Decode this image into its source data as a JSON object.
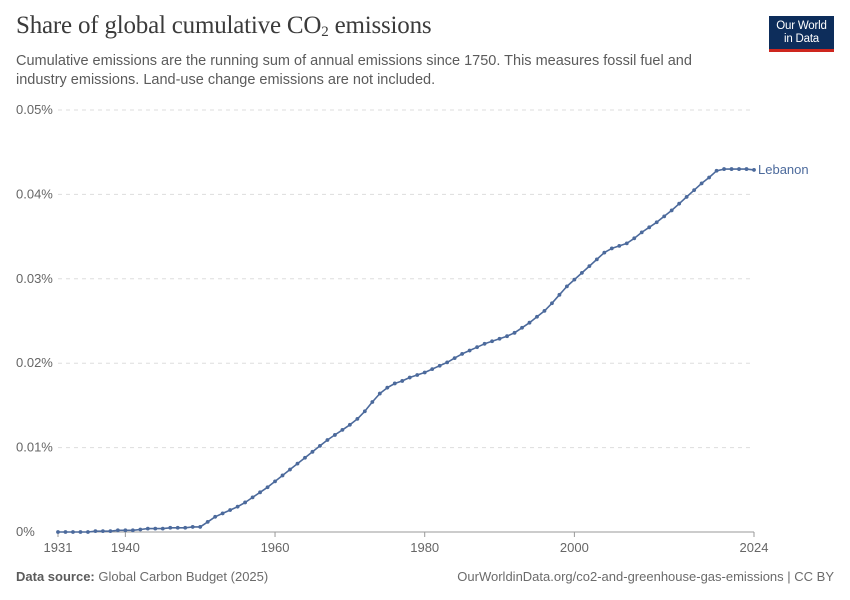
{
  "header": {
    "title_main": "Share of global cumulative CO",
    "title_sub": "2",
    "title_tail": " emissions",
    "subtitle": "Cumulative emissions are the running sum of annual emissions since 1750. This measures fossil fuel and industry emissions. Land-use change emissions are not included."
  },
  "logo": {
    "line1": "Our World",
    "line2": "in Data",
    "bg_color": "#0d2d5b",
    "accent_color": "#ce261e"
  },
  "footer": {
    "source_label": "Data source:",
    "source_value": "Global Carbon Budget (2025)",
    "url": "OurWorldinData.org/co2-and-greenhouse-gas-emissions | CC BY"
  },
  "chart_data": {
    "type": "line",
    "title": "Share of global cumulative CO₂ emissions",
    "xlabel": "",
    "ylabel": "",
    "xlim": [
      1931,
      2024
    ],
    "ylim": [
      0,
      0.05
    ],
    "y_ticks": [
      0,
      0.01,
      0.02,
      0.03,
      0.04,
      0.05
    ],
    "y_tick_labels": [
      "0%",
      "0.01%",
      "0.02%",
      "0.03%",
      "0.04%",
      "0.05%"
    ],
    "x_ticks": [
      1931,
      1940,
      1960,
      1980,
      2000,
      2024
    ],
    "x_tick_labels": [
      "1931",
      "1940",
      "1960",
      "1980",
      "2000",
      "2024"
    ],
    "grid": "horizontal-dashed",
    "legend": "inline-right",
    "line_color": "#4c6a9c",
    "series": [
      {
        "name": "Lebanon",
        "unit": "%",
        "x": [
          1931,
          1932,
          1933,
          1934,
          1935,
          1936,
          1937,
          1938,
          1939,
          1940,
          1941,
          1942,
          1943,
          1944,
          1945,
          1946,
          1947,
          1948,
          1949,
          1950,
          1951,
          1952,
          1953,
          1954,
          1955,
          1956,
          1957,
          1958,
          1959,
          1960,
          1961,
          1962,
          1963,
          1964,
          1965,
          1966,
          1967,
          1968,
          1969,
          1970,
          1971,
          1972,
          1973,
          1974,
          1975,
          1976,
          1977,
          1978,
          1979,
          1980,
          1981,
          1982,
          1983,
          1984,
          1985,
          1986,
          1987,
          1988,
          1989,
          1990,
          1991,
          1992,
          1993,
          1994,
          1995,
          1996,
          1997,
          1998,
          1999,
          2000,
          2001,
          2002,
          2003,
          2004,
          2005,
          2006,
          2007,
          2008,
          2009,
          2010,
          2011,
          2012,
          2013,
          2014,
          2015,
          2016,
          2017,
          2018,
          2019,
          2020,
          2021,
          2022,
          2023,
          2024
        ],
        "y": [
          0.0,
          0.0,
          0.0,
          0.0,
          0.0,
          0.0001,
          0.0001,
          0.0001,
          0.0002,
          0.0002,
          0.0002,
          0.0003,
          0.0004,
          0.0004,
          0.0004,
          0.0005,
          0.0005,
          0.0005,
          0.0006,
          0.0006,
          0.0012,
          0.0018,
          0.0022,
          0.0026,
          0.003,
          0.0035,
          0.0041,
          0.0047,
          0.0053,
          0.006,
          0.0067,
          0.0074,
          0.0081,
          0.0088,
          0.0095,
          0.0102,
          0.0109,
          0.0115,
          0.0121,
          0.0127,
          0.0134,
          0.0143,
          0.0154,
          0.0164,
          0.0171,
          0.0176,
          0.0179,
          0.0183,
          0.0186,
          0.0189,
          0.0193,
          0.0197,
          0.0201,
          0.0206,
          0.0211,
          0.0215,
          0.0219,
          0.0223,
          0.0226,
          0.0229,
          0.0232,
          0.0236,
          0.0242,
          0.0248,
          0.0255,
          0.0262,
          0.0271,
          0.0281,
          0.0291,
          0.0299,
          0.0307,
          0.0315,
          0.0323,
          0.0331,
          0.0336,
          0.0339,
          0.0342,
          0.0348,
          0.0355,
          0.0361,
          0.0367,
          0.0374,
          0.0381,
          0.0389,
          0.0397,
          0.0405,
          0.0413,
          0.042,
          0.0428,
          0.043,
          0.043,
          0.043,
          0.043,
          0.0429
        ]
      }
    ]
  }
}
